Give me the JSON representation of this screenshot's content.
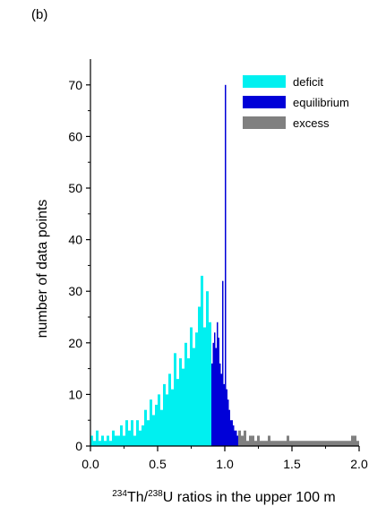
{
  "panel_label": "(b)",
  "colors": {
    "deficit": "#00f0f0",
    "equilibrium": "#0000d8",
    "excess": "#808080",
    "axis": "#000000"
  },
  "chart_data": {
    "type": "bar",
    "title": "",
    "xlabel": {
      "sup1": "234",
      "el1": "Th/",
      "sup2": "238",
      "rest": "U ratios in the upper 100 m"
    },
    "ylabel": "number of data points",
    "xlim": [
      0,
      2.0
    ],
    "ylim": [
      0,
      75
    ],
    "xticks": [
      "0.0",
      "0.5",
      "1.0",
      "1.5",
      "2.0"
    ],
    "yticks": [
      "0",
      "10",
      "20",
      "30",
      "40",
      "50",
      "60",
      "70"
    ],
    "bin_width": 0.005,
    "legend_position": "top-right",
    "series": [
      {
        "name": "deficit",
        "range": [
          0.0,
          0.9
        ],
        "bins": [
          [
            0.0,
            2
          ],
          [
            0.02,
            1
          ],
          [
            0.04,
            3
          ],
          [
            0.06,
            1
          ],
          [
            0.08,
            2
          ],
          [
            0.1,
            1
          ],
          [
            0.12,
            2
          ],
          [
            0.14,
            1
          ],
          [
            0.16,
            3
          ],
          [
            0.18,
            2
          ],
          [
            0.2,
            2
          ],
          [
            0.22,
            4
          ],
          [
            0.24,
            2
          ],
          [
            0.26,
            5
          ],
          [
            0.28,
            3
          ],
          [
            0.3,
            5
          ],
          [
            0.32,
            2
          ],
          [
            0.34,
            5
          ],
          [
            0.36,
            3
          ],
          [
            0.38,
            4
          ],
          [
            0.4,
            7
          ],
          [
            0.42,
            5
          ],
          [
            0.44,
            9
          ],
          [
            0.46,
            6
          ],
          [
            0.48,
            8
          ],
          [
            0.5,
            10
          ],
          [
            0.52,
            7
          ],
          [
            0.54,
            12
          ],
          [
            0.56,
            10
          ],
          [
            0.58,
            14
          ],
          [
            0.6,
            11
          ],
          [
            0.62,
            18
          ],
          [
            0.64,
            13
          ],
          [
            0.66,
            17
          ],
          [
            0.68,
            15
          ],
          [
            0.7,
            20
          ],
          [
            0.72,
            17
          ],
          [
            0.74,
            23
          ],
          [
            0.76,
            19
          ],
          [
            0.78,
            22
          ],
          [
            0.8,
            27
          ],
          [
            0.82,
            33
          ],
          [
            0.84,
            23
          ],
          [
            0.86,
            30
          ],
          [
            0.88,
            24
          ]
        ]
      },
      {
        "name": "equilibrium",
        "range": [
          0.9,
          1.1
        ],
        "bins": [
          [
            0.9,
            16
          ],
          [
            0.91,
            20
          ],
          [
            0.92,
            22
          ],
          [
            0.93,
            19
          ],
          [
            0.94,
            24
          ],
          [
            0.95,
            21
          ],
          [
            0.96,
            16
          ],
          [
            0.97,
            14
          ],
          [
            0.98,
            32
          ],
          [
            0.99,
            12
          ],
          [
            1.0,
            70
          ],
          [
            1.01,
            11
          ],
          [
            1.02,
            9
          ],
          [
            1.03,
            7
          ],
          [
            1.04,
            5
          ],
          [
            1.05,
            5
          ],
          [
            1.06,
            4
          ],
          [
            1.07,
            3
          ],
          [
            1.08,
            3
          ],
          [
            1.09,
            2
          ]
        ]
      },
      {
        "name": "excess",
        "range": [
          1.1,
          2.0
        ],
        "bins": [
          [
            1.1,
            3
          ],
          [
            1.12,
            2
          ],
          [
            1.14,
            3
          ],
          [
            1.16,
            1
          ],
          [
            1.18,
            2
          ],
          [
            1.2,
            2
          ],
          [
            1.22,
            1
          ],
          [
            1.24,
            2
          ],
          [
            1.26,
            1
          ],
          [
            1.28,
            1
          ],
          [
            1.3,
            1
          ],
          [
            1.32,
            2
          ],
          [
            1.34,
            1
          ],
          [
            1.36,
            1
          ],
          [
            1.38,
            1
          ],
          [
            1.4,
            1
          ],
          [
            1.42,
            1
          ],
          [
            1.44,
            1
          ],
          [
            1.46,
            2
          ],
          [
            1.48,
            1
          ],
          [
            1.5,
            1
          ],
          [
            1.52,
            1
          ],
          [
            1.54,
            1
          ],
          [
            1.56,
            1
          ],
          [
            1.58,
            1
          ],
          [
            1.62,
            1
          ],
          [
            1.66,
            1
          ],
          [
            1.7,
            1
          ],
          [
            1.74,
            1
          ],
          [
            1.78,
            1
          ],
          [
            1.82,
            1
          ],
          [
            1.86,
            1
          ],
          [
            1.9,
            1
          ],
          [
            1.94,
            2
          ],
          [
            1.98,
            1
          ]
        ]
      }
    ]
  }
}
